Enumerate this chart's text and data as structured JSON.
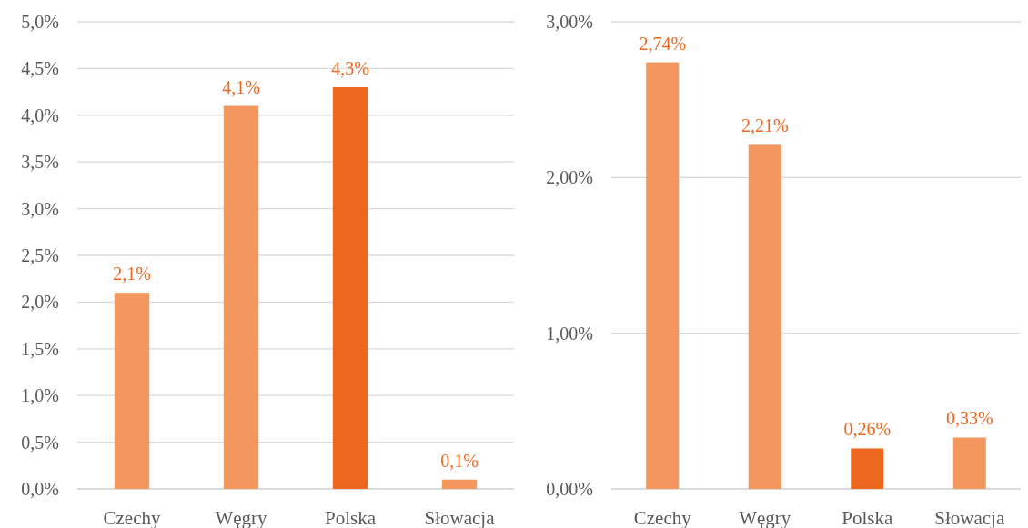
{
  "chart_data": [
    {
      "type": "bar",
      "categories": [
        "Czechy",
        "Węgry",
        "Polska",
        "Słowacja"
      ],
      "values": [
        2.1,
        4.1,
        4.3,
        0.1
      ],
      "colors": [
        "#f4975f",
        "#f4975f",
        "#ee671f",
        "#f4975f"
      ],
      "value_labels": [
        "2,1%",
        "4,1%",
        "4,3%",
        "0,1%"
      ],
      "ylim": [
        0,
        5
      ],
      "yticks": [
        {
          "value": 0,
          "label": "0,0%"
        },
        {
          "value": 0.5,
          "label": "0,5%"
        },
        {
          "value": 1,
          "label": "1,0%"
        },
        {
          "value": 1.5,
          "label": "1,5%"
        },
        {
          "value": 2,
          "label": "2,0%"
        },
        {
          "value": 2.5,
          "label": "2,5%"
        },
        {
          "value": 3,
          "label": "3,0%"
        },
        {
          "value": 3.5,
          "label": "3,5%"
        },
        {
          "value": 4,
          "label": "4,0%"
        },
        {
          "value": 4.5,
          "label": "4,5%"
        },
        {
          "value": 5,
          "label": "5,0%"
        }
      ],
      "grid": "y"
    },
    {
      "type": "bar",
      "categories": [
        "Czechy",
        "Węgry",
        "Polska",
        "Słowacja"
      ],
      "values": [
        2.74,
        2.21,
        0.26,
        0.33
      ],
      "colors": [
        "#f4975f",
        "#f4975f",
        "#ee671f",
        "#f4975f"
      ],
      "value_labels": [
        "2,74%",
        "2,21%",
        "0,26%",
        "0,33%"
      ],
      "ylim": [
        0,
        3
      ],
      "yticks": [
        {
          "value": 0,
          "label": "0,00%"
        },
        {
          "value": 1,
          "label": "1,00%"
        },
        {
          "value": 2,
          "label": "2,00%"
        },
        {
          "value": 3,
          "label": "3,00%"
        }
      ],
      "grid": "y"
    }
  ]
}
